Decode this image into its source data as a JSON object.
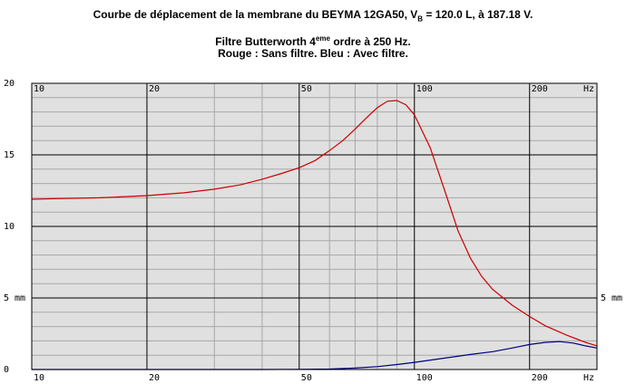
{
  "title": {
    "line1_main": "Courbe de déplacement de la membrane du BEYMA 12GA50, V",
    "line1_sub": "B",
    "line1_end": " = 120.0 L, à 187.18 V.",
    "line2_main": "Filtre Butterworth 4",
    "line2_sup": "eme",
    "line2_end": " ordre à 250 Hz.",
    "line3": "Rouge : Sans filtre. Bleu : Avec filtre."
  },
  "chart_data": {
    "type": "line",
    "x_scale": "log",
    "xlim": [
      10,
      300
    ],
    "ylim": [
      0,
      20
    ],
    "x_ticks": [
      {
        "value": 10,
        "label": "10"
      },
      {
        "value": 20,
        "label": "20"
      },
      {
        "value": 50,
        "label": "50"
      },
      {
        "value": 100,
        "label": "100"
      },
      {
        "value": 200,
        "label": "200"
      }
    ],
    "x_unit_label": "Hz",
    "y_ticks": [
      {
        "value": 0,
        "label": "0"
      },
      {
        "value": 5,
        "label": "5 mm"
      },
      {
        "value": 10,
        "label": "10"
      },
      {
        "value": 15,
        "label": "15"
      },
      {
        "value": 20,
        "label": "20"
      }
    ],
    "y_right_label": "5 mm",
    "colors": {
      "background": "#e0e0e0",
      "grid_minor": "#a8a8a8",
      "grid_major": "#000000"
    },
    "series": [
      {
        "color": "#cc0000",
        "x": [
          10,
          12,
          15,
          20,
          25,
          30,
          35,
          40,
          45,
          50,
          55,
          60,
          65,
          70,
          75,
          80,
          85,
          90,
          95,
          100,
          110,
          120,
          130,
          140,
          150,
          160,
          180,
          200,
          220,
          250,
          280,
          300
        ],
        "y": [
          11.9,
          11.95,
          12.0,
          12.15,
          12.35,
          12.6,
          12.9,
          13.3,
          13.7,
          14.1,
          14.6,
          15.3,
          16.0,
          16.8,
          17.6,
          18.3,
          18.75,
          18.8,
          18.5,
          17.8,
          15.5,
          12.5,
          9.7,
          7.8,
          6.5,
          5.6,
          4.5,
          3.7,
          3.05,
          2.4,
          1.9,
          1.65
        ]
      },
      {
        "color": "#000080",
        "x": [
          10,
          20,
          40,
          50,
          60,
          70,
          80,
          90,
          100,
          120,
          140,
          160,
          180,
          200,
          220,
          240,
          260,
          280,
          300
        ],
        "y": [
          0,
          0,
          0,
          0.01,
          0.03,
          0.1,
          0.2,
          0.35,
          0.5,
          0.8,
          1.05,
          1.25,
          1.5,
          1.75,
          1.9,
          1.95,
          1.85,
          1.65,
          1.5
        ]
      }
    ]
  }
}
